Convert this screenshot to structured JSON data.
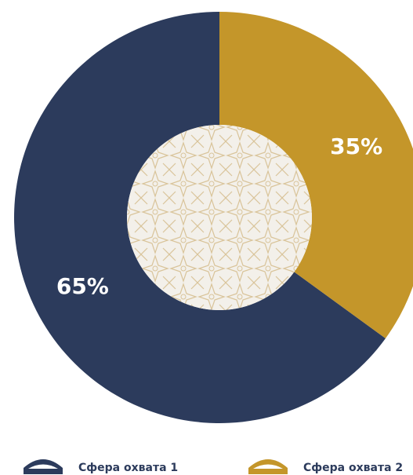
{
  "chart_data": {
    "type": "donut",
    "categories": [
      "Сфера охвата 1",
      "Сфера охвата 2"
    ],
    "values": [
      65,
      35
    ],
    "value_labels": [
      "65%",
      "35%"
    ],
    "colors": [
      "#2c3b5c",
      "#c4962a"
    ]
  }
}
